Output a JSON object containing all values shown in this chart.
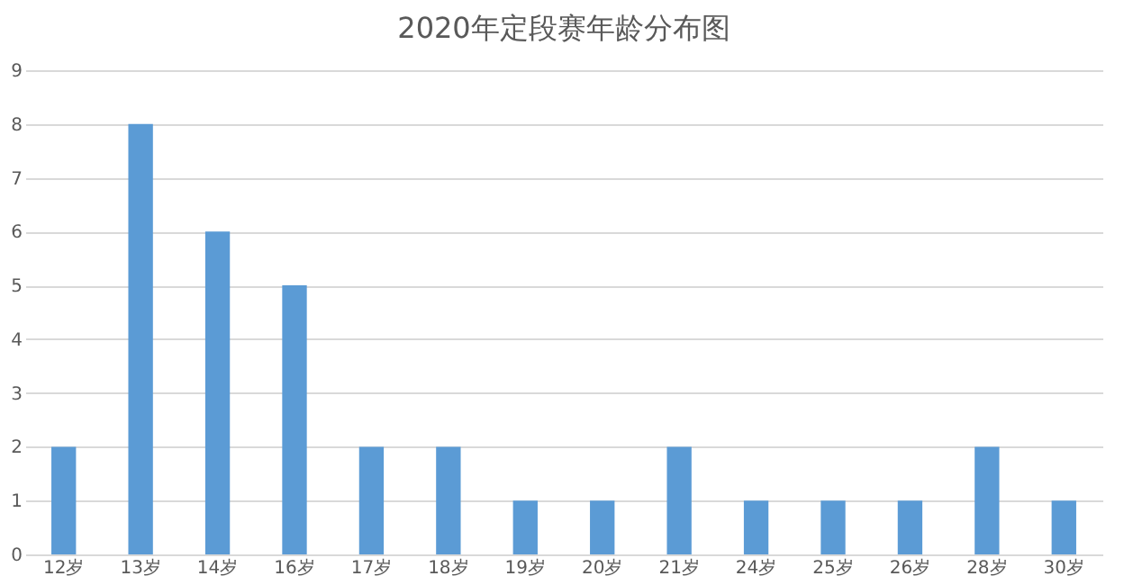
{
  "chart_data": {
    "type": "bar",
    "title": "2020年定段赛年龄分布图",
    "categories": [
      "12岁",
      "13岁",
      "14岁",
      "16岁",
      "17岁",
      "18岁",
      "19岁",
      "20岁",
      "21岁",
      "24岁",
      "25岁",
      "26岁",
      "28岁",
      "30岁"
    ],
    "values": [
      2,
      8,
      6,
      5,
      2,
      2,
      1,
      1,
      2,
      1,
      1,
      1,
      2,
      1
    ],
    "color": "#5b9bd5",
    "ylim": [
      0,
      9
    ],
    "yticks": [
      0,
      1,
      2,
      3,
      4,
      5,
      6,
      7,
      8,
      9
    ],
    "grid": "y"
  }
}
